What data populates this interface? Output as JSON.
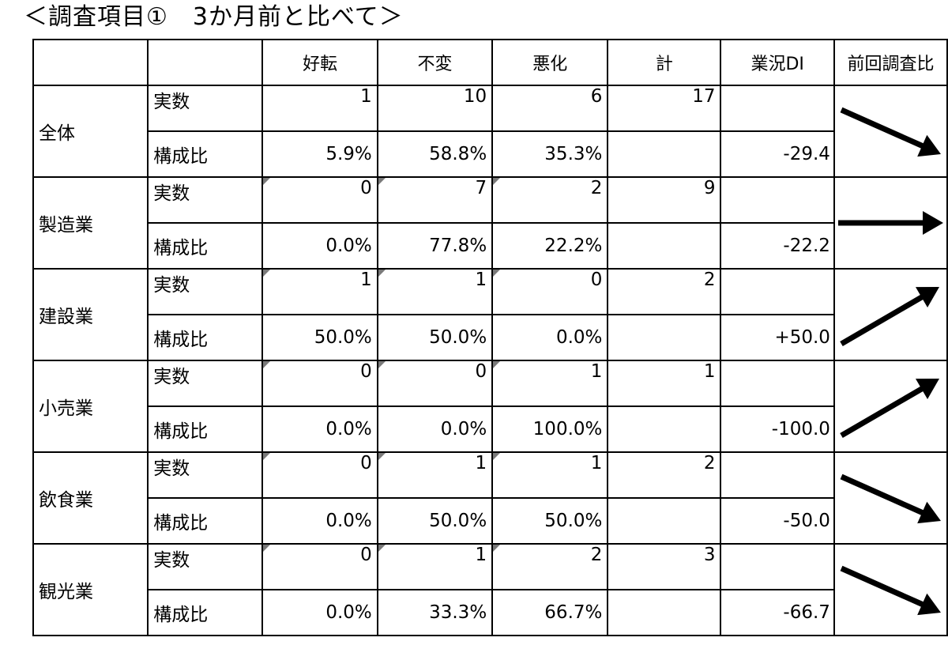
{
  "title": "＜調査項目①　3か月前と比べて＞",
  "headers": [
    "",
    "",
    "好転",
    "不変",
    "悪化",
    "計",
    "業況DI",
    "前回調査比"
  ],
  "labels": {
    "count": "実数",
    "ratio": "構成比"
  },
  "rows": [
    {
      "name": "全体",
      "improved": "1",
      "same": "10",
      "worse": "6",
      "total": "17",
      "r_improved": "5.9%",
      "r_same": "58.8%",
      "r_worse": "35.3%",
      "di": "-29.4",
      "trend": "down"
    },
    {
      "name": "製造業",
      "improved": "0",
      "same": "7",
      "worse": "2",
      "total": "9",
      "r_improved": "0.0%",
      "r_same": "77.8%",
      "r_worse": "22.2%",
      "di": "-22.2",
      "trend": "flat"
    },
    {
      "name": "建設業",
      "improved": "1",
      "same": "1",
      "worse": "0",
      "total": "2",
      "r_improved": "50.0%",
      "r_same": "50.0%",
      "r_worse": "0.0%",
      "di": "+50.0",
      "trend": "up"
    },
    {
      "name": "小売業",
      "improved": "0",
      "same": "0",
      "worse": "1",
      "total": "1",
      "r_improved": "0.0%",
      "r_same": "0.0%",
      "r_worse": "100.0%",
      "di": "-100.0",
      "trend": "up"
    },
    {
      "name": "飲食業",
      "improved": "0",
      "same": "1",
      "worse": "1",
      "total": "2",
      "r_improved": "0.0%",
      "r_same": "50.0%",
      "r_worse": "50.0%",
      "di": "-50.0",
      "trend": "down"
    },
    {
      "name": "観光業",
      "improved": "0",
      "same": "1",
      "worse": "2",
      "total": "3",
      "r_improved": "0.0%",
      "r_same": "33.3%",
      "r_worse": "66.7%",
      "di": "-66.7",
      "trend": "down"
    }
  ],
  "arrow_color": "#000000"
}
